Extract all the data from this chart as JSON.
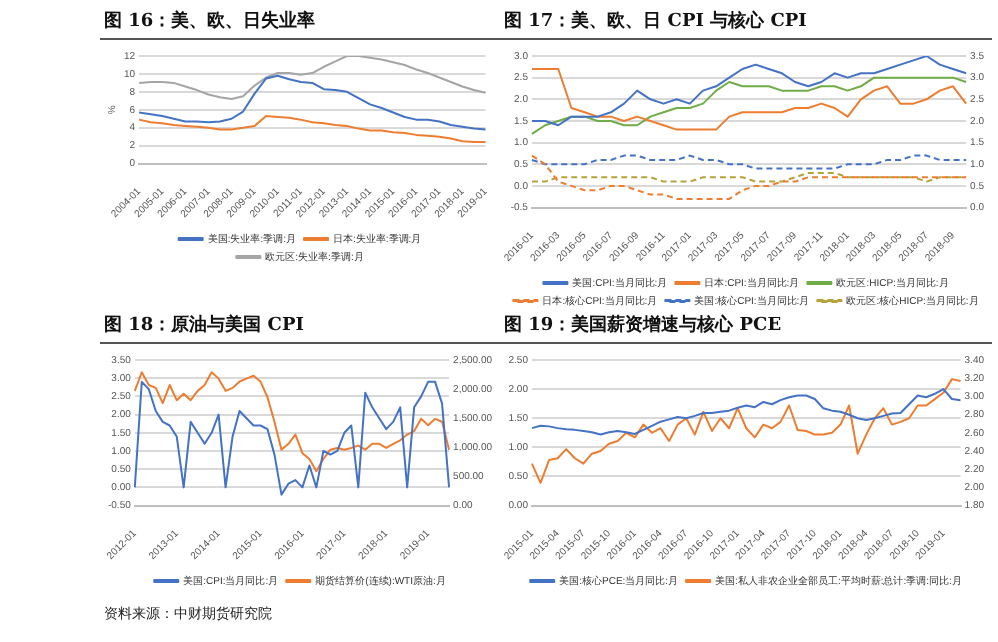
{
  "chart_data": [
    {
      "type": "line",
      "title": "图 16：美、欧、日失业率",
      "ylabel": "%",
      "grid": "y",
      "legend": "bottom",
      "categories": [
        "2004-01",
        null,
        "2005-01",
        null,
        "2006-01",
        null,
        "2007-01",
        null,
        "2008-01",
        null,
        "2009-01",
        null,
        "2010-01",
        null,
        "2011-01",
        null,
        "2012-01",
        null,
        "2013-01",
        null,
        "2014-01",
        null,
        "2015-01",
        null,
        "2016-01",
        null,
        "2017-01",
        null,
        "2018-01",
        null,
        "2019-01"
      ],
      "ylim": [
        0,
        12
      ],
      "yticks": [
        0,
        2,
        4,
        6,
        8,
        10,
        12
      ],
      "series": [
        {
          "name": "美国:失业率:季调:月",
          "color": "#4472c4",
          "values": [
            5.7,
            5.5,
            5.3,
            5.0,
            4.7,
            4.7,
            4.6,
            4.7,
            5.0,
            5.8,
            7.8,
            9.5,
            9.8,
            9.4,
            9.1,
            9.0,
            8.3,
            8.2,
            8.0,
            7.3,
            6.6,
            6.2,
            5.7,
            5.2,
            4.9,
            4.9,
            4.7,
            4.3,
            4.1,
            3.9,
            3.8
          ]
        },
        {
          "name": "日本:失业率:季调:月",
          "color": "#ed7d31",
          "values": [
            4.9,
            4.6,
            4.5,
            4.3,
            4.2,
            4.1,
            4.0,
            3.8,
            3.8,
            4.0,
            4.2,
            5.3,
            5.2,
            5.1,
            4.9,
            4.6,
            4.5,
            4.3,
            4.2,
            3.9,
            3.7,
            3.7,
            3.5,
            3.4,
            3.2,
            3.1,
            3.0,
            2.8,
            2.5,
            2.4,
            2.4
          ]
        },
        {
          "name": "欧元区:失业率:季调:月",
          "color": "#a5a5a5",
          "values": [
            9.0,
            9.1,
            9.1,
            9.0,
            8.6,
            8.2,
            7.7,
            7.4,
            7.2,
            7.5,
            8.7,
            9.6,
            10.1,
            10.1,
            9.9,
            10.1,
            10.8,
            11.4,
            12.0,
            12.0,
            11.8,
            11.6,
            11.3,
            11.0,
            10.5,
            10.1,
            9.6,
            9.1,
            8.6,
            8.2,
            7.9
          ]
        }
      ]
    },
    {
      "type": "line",
      "title": "图 17：美、欧、日 CPI 与核心 CPI",
      "grid": "y",
      "legend": "bottom",
      "categories": [
        "2016-01",
        null,
        "2016-03",
        null,
        "2016-05",
        null,
        "2016-07",
        null,
        "2016-09",
        null,
        "2016-11",
        null,
        "2017-01",
        null,
        "2017-03",
        null,
        "2017-05",
        null,
        "2017-07",
        null,
        "2017-09",
        null,
        "2017-11",
        null,
        "2018-01",
        null,
        "2018-03",
        null,
        "2018-05",
        null,
        "2018-07",
        null,
        "2018-09",
        null
      ],
      "ylim": [
        -0.5,
        3.0
      ],
      "yticks": [
        {
          "value": -0.5,
          "label": "-0.5"
        },
        {
          "value": 0,
          "label": "0.0"
        },
        {
          "value": 0.5,
          "label": "0.5"
        },
        {
          "value": 1,
          "label": "1.0"
        },
        {
          "value": 1.5,
          "label": "1.5"
        },
        {
          "value": 2,
          "label": "2.0"
        },
        {
          "value": 2.5,
          "label": "2.5"
        },
        {
          "value": 3,
          "label": "3.0"
        }
      ],
      "y2lim": [
        0,
        3.5
      ],
      "y2ticks": [
        {
          "value": 0,
          "label": "0.0"
        },
        {
          "value": 0.5,
          "label": "0.5"
        },
        {
          "value": 1,
          "label": "1.0"
        },
        {
          "value": 1.5,
          "label": "1.5"
        },
        {
          "value": 2,
          "label": "2.0"
        },
        {
          "value": 2.5,
          "label": "2.5"
        },
        {
          "value": 3,
          "label": "3.0"
        },
        {
          "value": 3.5,
          "label": "3.5"
        }
      ],
      "series": [
        {
          "name": "美国:CPI:当月同比:月",
          "color": "#4472c4",
          "values": [
            1.5,
            1.5,
            1.4,
            1.6,
            1.6,
            1.6,
            1.7,
            1.9,
            2.2,
            2.0,
            1.9,
            2.0,
            1.9,
            2.2,
            2.3,
            2.5,
            2.7,
            2.8,
            2.7,
            2.6,
            2.4,
            2.3,
            2.4,
            2.6,
            2.5,
            2.6,
            2.6,
            2.7,
            2.8,
            2.9,
            3.0,
            2.8,
            2.7,
            2.6
          ]
        },
        {
          "name": "日本:CPI:当月同比:月",
          "color": "#ed7d31",
          "values": [
            2.7,
            2.7,
            2.7,
            1.8,
            1.7,
            1.6,
            1.6,
            1.5,
            1.6,
            1.5,
            1.4,
            1.3,
            1.3,
            1.3,
            1.3,
            1.6,
            1.7,
            1.7,
            1.7,
            1.7,
            1.8,
            1.8,
            1.9,
            1.8,
            1.6,
            2.0,
            2.2,
            2.3,
            1.9,
            1.9,
            2.0,
            2.2,
            2.3,
            1.9
          ]
        },
        {
          "name": "欧元区:HICP:当月同比:月",
          "color": "#70ad47",
          "values": [
            1.2,
            1.4,
            1.5,
            1.6,
            1.6,
            1.5,
            1.5,
            1.4,
            1.4,
            1.6,
            1.7,
            1.8,
            1.8,
            1.9,
            2.2,
            2.4,
            2.3,
            2.3,
            2.3,
            2.2,
            2.2,
            2.2,
            2.3,
            2.3,
            2.2,
            2.3,
            2.5,
            2.5,
            2.5,
            2.5,
            2.5,
            2.5,
            2.5,
            2.4
          ]
        },
        {
          "name": "日本:核心CPI:当月同比:月",
          "color": "#ed7d31",
          "line_style": "dashed",
          "axis": "y2",
          "values": [
            1.2,
            1.0,
            0.6,
            0.5,
            0.4,
            0.4,
            0.5,
            0.5,
            0.4,
            0.3,
            0.3,
            0.2,
            0.2,
            0.2,
            0.2,
            0.2,
            0.4,
            0.5,
            0.5,
            0.6,
            0.6,
            0.7,
            0.7,
            0.7,
            0.7,
            0.7,
            0.7,
            0.7,
            0.7,
            0.7,
            0.7,
            0.7,
            0.7,
            0.7
          ]
        },
        {
          "name": "美国:核心CPI:当月同比:月",
          "color": "#4472c4",
          "line_style": "dashed",
          "axis": "y2",
          "values": [
            1.1,
            1.0,
            1.0,
            1.0,
            1.0,
            1.1,
            1.1,
            1.2,
            1.2,
            1.1,
            1.1,
            1.1,
            1.2,
            1.1,
            1.1,
            1.0,
            1.0,
            0.9,
            0.9,
            0.9,
            0.9,
            0.9,
            0.9,
            0.9,
            1.0,
            1.0,
            1.0,
            1.1,
            1.1,
            1.2,
            1.2,
            1.1,
            1.1,
            1.1
          ]
        },
        {
          "name": "欧元区:核心HICP:当月同比:月",
          "color": "#b5a33a",
          "line_style": "dashed",
          "axis": "y2",
          "values": [
            0.6,
            0.6,
            0.7,
            0.7,
            0.7,
            0.7,
            0.7,
            0.7,
            0.7,
            0.7,
            0.6,
            0.6,
            0.6,
            0.7,
            0.7,
            0.7,
            0.7,
            0.6,
            0.6,
            0.6,
            0.7,
            0.8,
            0.8,
            0.8,
            0.7,
            0.7,
            0.7,
            0.7,
            0.7,
            0.7,
            0.6,
            0.7,
            0.7,
            0.7
          ]
        }
      ]
    },
    {
      "type": "line",
      "title": "图 18：原油与美国 CPI",
      "grid": "y",
      "legend": "bottom",
      "annotations": [
        "资料来源：中财期货研究院"
      ],
      "categories": [
        "2012-01",
        null,
        null,
        null,
        null,
        null,
        "2013-01",
        null,
        null,
        null,
        null,
        null,
        "2014-01",
        null,
        null,
        null,
        null,
        null,
        "2015-01",
        null,
        null,
        null,
        null,
        null,
        "2016-01",
        null,
        null,
        null,
        null,
        null,
        "2017-01",
        null,
        null,
        null,
        null,
        null,
        "2018-01",
        null,
        null,
        null,
        null,
        null,
        "2019-01",
        null,
        null,
        null
      ],
      "ylim": [
        -0.5,
        3.5
      ],
      "yticks": [
        {
          "value": -0.5,
          "label": "-0.50"
        },
        {
          "value": 0,
          "label": "0.00"
        },
        {
          "value": 0.5,
          "label": "0.50"
        },
        {
          "value": 1,
          "label": "1.00"
        },
        {
          "value": 1.5,
          "label": "1.50"
        },
        {
          "value": 2,
          "label": "2.00"
        },
        {
          "value": 2.5,
          "label": "2.50"
        },
        {
          "value": 3,
          "label": "3.00"
        },
        {
          "value": 3.5,
          "label": "3.50"
        }
      ],
      "y2lim": [
        0,
        2500
      ],
      "y2ticks": [
        {
          "value": 0,
          "label": "0.00"
        },
        {
          "value": 500,
          "label": "500.00"
        },
        {
          "value": 1000,
          "label": "1,000.00"
        },
        {
          "value": 1500,
          "label": "1,500.00"
        },
        {
          "value": 2000,
          "label": "2,000.00"
        },
        {
          "value": 2500,
          "label": "2,500.00"
        }
      ],
      "series": [
        {
          "name": "美国:CPI:当月同比:月",
          "color": "#4472c4",
          "values": [
            0,
            2.9,
            2.7,
            2.1,
            1.8,
            1.7,
            1.4,
            0,
            1.8,
            1.5,
            1.2,
            1.5,
            2.0,
            0,
            1.4,
            2.1,
            1.9,
            1.7,
            1.7,
            1.6,
            0.9,
            -0.2,
            0.1,
            0.2,
            0.0,
            0.6,
            0,
            1.0,
            0.9,
            1.0,
            1.5,
            1.7,
            0,
            2.6,
            2.2,
            1.9,
            1.6,
            1.8,
            2.2,
            0,
            2.2,
            2.5,
            2.9,
            2.9,
            2.3,
            0
          ]
        },
        {
          "name": "期货结算价(连续):WTI原油:月",
          "color": "#ed7d31",
          "axis": "y2",
          "values": [
            1970,
            2290,
            2070,
            2020,
            1760,
            2070,
            1810,
            1920,
            1810,
            1970,
            2070,
            2290,
            2180,
            1970,
            2020,
            2130,
            2180,
            2230,
            2130,
            1860,
            1440,
            960,
            1060,
            1220,
            900,
            800,
            590,
            800,
            960,
            990,
            960,
            990,
            1030,
            960,
            1060,
            1060,
            990,
            1060,
            1120,
            1220,
            1280,
            1490,
            1380,
            1490,
            1440,
            960
          ]
        }
      ]
    },
    {
      "type": "line",
      "title": "图 19：美国薪资增速与核心 PCE",
      "grid": "y",
      "legend": "bottom",
      "categories": [
        "2015-01",
        null,
        null,
        "2015-04",
        null,
        null,
        "2015-07",
        null,
        null,
        "2015-10",
        null,
        null,
        "2016-01",
        null,
        null,
        "2016-04",
        null,
        null,
        "2016-07",
        null,
        null,
        "2016-10",
        null,
        null,
        "2017-01",
        null,
        null,
        "2017-04",
        null,
        null,
        "2017-07",
        null,
        null,
        "2017-10",
        null,
        null,
        "2018-01",
        null,
        null,
        "2018-04",
        null,
        null,
        "2018-07",
        null,
        null,
        "2018-10",
        null,
        null,
        "2019-01",
        null,
        null
      ],
      "ylim": [
        0,
        2.5
      ],
      "yticks": [
        {
          "value": 0,
          "label": "0.00"
        },
        {
          "value": 0.5,
          "label": "0.50"
        },
        {
          "value": 1,
          "label": "1.00"
        },
        {
          "value": 1.5,
          "label": "1.50"
        },
        {
          "value": 2,
          "label": "2.00"
        },
        {
          "value": 2.5,
          "label": "2.50"
        }
      ],
      "y2lim": [
        1.8,
        3.4
      ],
      "y2ticks": [
        {
          "value": 1.8,
          "label": "1.80"
        },
        {
          "value": 2.0,
          "label": "2.00"
        },
        {
          "value": 2.2,
          "label": "2.20"
        },
        {
          "value": 2.4,
          "label": "2.40"
        },
        {
          "value": 2.6,
          "label": "2.60"
        },
        {
          "value": 2.8,
          "label": "2.80"
        },
        {
          "value": 3.0,
          "label": "3.00"
        },
        {
          "value": 3.2,
          "label": "3.20"
        },
        {
          "value": 3.4,
          "label": "3.40"
        }
      ],
      "series": [
        {
          "name": "美国:核心PCE:当月同比:月",
          "color": "#4472c4",
          "values": [
            1.33,
            1.37,
            1.36,
            1.33,
            1.31,
            1.3,
            1.28,
            1.26,
            1.22,
            1.26,
            1.28,
            1.26,
            1.23,
            1.3,
            1.37,
            1.44,
            1.48,
            1.52,
            1.5,
            1.54,
            1.59,
            1.59,
            1.61,
            1.63,
            1.68,
            1.72,
            1.69,
            1.78,
            1.74,
            1.81,
            1.86,
            1.89,
            1.89,
            1.83,
            1.67,
            1.63,
            1.61,
            1.56,
            1.5,
            1.47,
            1.5,
            1.54,
            1.58,
            1.59,
            1.74,
            1.89,
            1.86,
            1.92,
            2.0,
            1.83,
            1.81
          ]
        },
        {
          "name": "美国:私人非农企业全部员工:平均时薪:总计:季调:同比:月",
          "color": "#ed7d31",
          "axis": "y2",
          "values": [
            2.26,
            2.05,
            2.3,
            2.32,
            2.42,
            2.32,
            2.26,
            2.37,
            2.4,
            2.48,
            2.51,
            2.6,
            2.55,
            2.69,
            2.6,
            2.65,
            2.51,
            2.69,
            2.76,
            2.58,
            2.83,
            2.62,
            2.76,
            2.65,
            2.87,
            2.65,
            2.55,
            2.69,
            2.65,
            2.72,
            2.9,
            2.63,
            2.62,
            2.58,
            2.58,
            2.6,
            2.69,
            2.9,
            2.37,
            2.58,
            2.76,
            2.87,
            2.69,
            2.72,
            2.76,
            2.9,
            2.9,
            2.97,
            3.04,
            3.19,
            3.17
          ]
        }
      ]
    }
  ]
}
